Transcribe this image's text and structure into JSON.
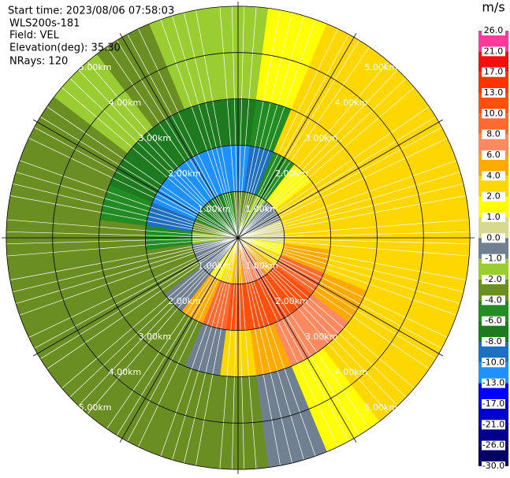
{
  "chart_data": {
    "type": "ppi",
    "info": [
      "Start time: 2023/08/06 07:58:03",
      "WLS200s-181",
      "Field: VEL",
      "Elevation(deg): 35.30",
      "NRays: 120"
    ],
    "rlim": [
      0,
      5.1
    ],
    "rings": [
      {
        "value": 1,
        "label": "1.00km"
      },
      {
        "value": 2,
        "label": "2.00km"
      },
      {
        "value": 3,
        "label": "3.00km"
      },
      {
        "value": 4,
        "label": "4.00km"
      },
      {
        "value": 5,
        "label": "5.00km"
      }
    ],
    "sector_width": 15,
    "azimuths": [
      0,
      15,
      30,
      45,
      60,
      75,
      90,
      105,
      120,
      135,
      150,
      165,
      180,
      195,
      210,
      225,
      240,
      255,
      270,
      285,
      300,
      315,
      330,
      345
    ],
    "ranges": [
      0,
      1,
      2,
      3,
      4,
      5
    ],
    "values": [
      [
        -3,
        -11,
        -7,
        -1.5,
        -1.5
      ],
      [
        -3,
        -9,
        -5,
        1.5,
        1.5
      ],
      [
        -1.5,
        -5,
        3,
        3,
        3
      ],
      [
        -0.5,
        1.5,
        3,
        3,
        3
      ],
      [
        -0.5,
        3,
        3,
        3,
        3
      ],
      [
        0.5,
        3,
        3,
        3,
        3
      ],
      [
        0.5,
        3,
        3,
        3,
        3
      ],
      [
        1.5,
        5,
        3,
        3,
        3
      ],
      [
        3,
        9,
        5,
        3,
        3
      ],
      [
        5,
        11,
        7,
        3,
        3
      ],
      [
        7,
        12,
        7,
        1.5,
        1.5
      ],
      [
        7,
        12,
        5,
        -0.5,
        -0.5
      ],
      [
        5,
        11,
        3,
        -3,
        -3
      ],
      [
        3,
        9,
        -0.5,
        -3,
        -3
      ],
      [
        1.5,
        5,
        -3,
        -3,
        -3
      ],
      [
        -0.5,
        -0.5,
        -3,
        -3,
        -3
      ],
      [
        -0.5,
        -3,
        -3,
        -3,
        -3
      ],
      [
        -0.5,
        -3,
        -3,
        -3,
        -3
      ],
      [
        -1.5,
        -5,
        -3,
        -3,
        -3
      ],
      [
        -3,
        -9,
        -5,
        -3,
        -3
      ],
      [
        -5,
        -11,
        -7,
        -3,
        -3
      ],
      [
        -7,
        -12,
        -7,
        -1.5,
        -1.5
      ],
      [
        -7,
        -12,
        -7,
        -3,
        -3
      ],
      [
        -5,
        -12,
        -7,
        -1.5,
        -1.5
      ]
    ],
    "colorbar": {
      "label": "m/s",
      "ticks": [
        {
          "value": 26,
          "label": "26.0"
        },
        {
          "value": 21,
          "label": "21.0"
        },
        {
          "value": 17,
          "label": "17.0"
        },
        {
          "value": 13,
          "label": "13.0"
        },
        {
          "value": 10,
          "label": "10.0"
        },
        {
          "value": 8,
          "label": "8.0"
        },
        {
          "value": 6,
          "label": "6.0"
        },
        {
          "value": 4,
          "label": "4.0"
        },
        {
          "value": 2,
          "label": "2.0"
        },
        {
          "value": 1,
          "label": "1.0"
        },
        {
          "value": 0,
          "label": "0.0"
        },
        {
          "value": -1,
          "label": "-1.0"
        },
        {
          "value": -2,
          "label": "-2.0"
        },
        {
          "value": -4,
          "label": "-4.0"
        },
        {
          "value": -6,
          "label": "-6.0"
        },
        {
          "value": -8,
          "label": "-8.0"
        },
        {
          "value": -10,
          "label": "-10.0"
        },
        {
          "value": -13,
          "label": "-13.0"
        },
        {
          "value": -17,
          "label": "-17.0"
        },
        {
          "value": -21,
          "label": "-21.0"
        },
        {
          "value": -26,
          "label": "-26.0"
        },
        {
          "value": -30,
          "label": "-30.0"
        }
      ],
      "colors": [
        "#ff3a9a",
        "#f01010",
        "#ff3300",
        "#ff5010",
        "#ff6a30",
        "#ff8a60",
        "#ffaa00",
        "#ffd700",
        "#ffff00",
        "#d8d890",
        "#708090",
        "#9acd32",
        "#6b8e23",
        "#228b22",
        "#1e7a1e",
        "#1e6fc0",
        "#1e90ff",
        "#0000ff",
        "#0000cd",
        "#00008b",
        "#000066"
      ]
    }
  }
}
